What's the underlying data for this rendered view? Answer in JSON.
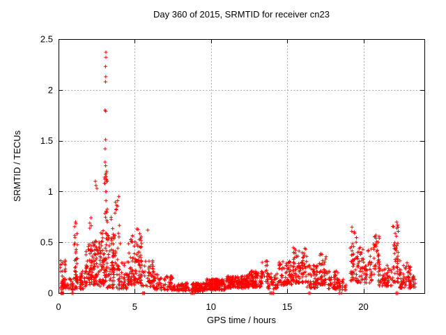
{
  "window": {
    "background": "#ffffff",
    "text_color": "#000000"
  },
  "chart_data": {
    "type": "scatter",
    "title": "Day 360 of 2015, SRMTID for receiver cn23",
    "xlabel": "GPS time / hours",
    "ylabel": "SRMTID / TECUs",
    "xlim": [
      0,
      24
    ],
    "ylim": [
      0,
      2.5
    ],
    "xticks": [
      0,
      5,
      10,
      15,
      20
    ],
    "yticks": [
      0,
      0.5,
      1,
      1.5,
      2,
      2.5
    ],
    "grid": true,
    "legend_position": "none",
    "marker": {
      "shape": "plus",
      "color": "#ff0000",
      "size": 5.2
    },
    "axis_color": "#000000",
    "grid_color": "#a8a8a8",
    "series_name": "SRMTID",
    "outlier_points": [
      [
        3.11,
        2.37
      ],
      [
        3.11,
        2.32
      ],
      [
        3.08,
        2.23
      ],
      [
        3.1,
        2.13
      ],
      [
        3.08,
        2.08
      ],
      [
        3.05,
        1.8
      ],
      [
        3.1,
        1.79
      ],
      [
        3.09,
        1.51
      ],
      [
        3.06,
        1.42
      ],
      [
        3.08,
        1.17
      ],
      [
        3.02,
        1.14
      ],
      [
        3.16,
        1.1
      ],
      [
        2.42,
        1.1
      ],
      [
        2.46,
        1.06
      ],
      [
        2.52,
        1.03
      ],
      [
        3.95,
        0.95
      ],
      [
        3.88,
        0.91
      ],
      [
        1.12,
        0.7
      ],
      [
        5.85,
        0.62
      ],
      [
        19.25,
        0.65
      ],
      [
        22.18,
        0.7
      ],
      [
        22.23,
        0.67
      ],
      [
        20.82,
        0.57
      ]
    ],
    "zero_value_times": [
      0.18,
      0.22,
      0.88,
      0.95,
      5.52,
      5.58,
      5.64,
      8.68,
      8.75,
      8.82,
      8.9,
      13.88,
      13.95,
      14.02,
      14.1,
      16.42,
      16.5,
      18.42,
      18.55,
      22.15,
      22.25
    ],
    "zero_square_x": 0.24,
    "density_bands": [
      {
        "x0": 0.12,
        "x1": 0.45,
        "ymin": 0.05,
        "ymax": 0.35,
        "n": 28,
        "skew": 1.6
      },
      {
        "x0": 0.2,
        "x1": 1.0,
        "ymin": 0.03,
        "ymax": 0.17,
        "n": 45,
        "skew": 1.4
      },
      {
        "x0": 1.0,
        "x1": 1.25,
        "ymin": 0.12,
        "ymax": 0.7,
        "n": 28,
        "skew": 1.7
      },
      {
        "x0": 1.05,
        "x1": 1.85,
        "ymin": 0.04,
        "ymax": 0.22,
        "n": 55,
        "skew": 1.4
      },
      {
        "x0": 1.8,
        "x1": 2.35,
        "ymin": 0.08,
        "ymax": 0.5,
        "n": 65,
        "skew": 1.8
      },
      {
        "x0": 2.05,
        "x1": 2.3,
        "ymin": 0.3,
        "ymax": 0.85,
        "n": 14,
        "skew": 1.3
      },
      {
        "x0": 2.3,
        "x1": 2.75,
        "ymin": 0.08,
        "ymax": 0.52,
        "n": 50,
        "skew": 1.7
      },
      {
        "x0": 2.7,
        "x1": 3.0,
        "ymin": 0.06,
        "ymax": 0.62,
        "n": 45,
        "skew": 1.6
      },
      {
        "x0": 2.98,
        "x1": 3.22,
        "ymin": 0.1,
        "ymax": 1.3,
        "n": 48,
        "skew": 1.5
      },
      {
        "x0": 3.2,
        "x1": 3.65,
        "ymin": 0.05,
        "ymax": 0.6,
        "n": 55,
        "skew": 1.8
      },
      {
        "x0": 3.45,
        "x1": 3.65,
        "ymin": 0.2,
        "ymax": 0.75,
        "n": 15,
        "skew": 1.3
      },
      {
        "x0": 3.7,
        "x1": 4.05,
        "ymin": 0.2,
        "ymax": 0.93,
        "n": 22,
        "skew": 1.4
      },
      {
        "x0": 3.8,
        "x1": 4.55,
        "ymin": 0.04,
        "ymax": 0.3,
        "n": 50,
        "skew": 1.5
      },
      {
        "x0": 4.5,
        "x1": 5.0,
        "ymin": 0.08,
        "ymax": 0.58,
        "n": 50,
        "skew": 1.6
      },
      {
        "x0": 4.95,
        "x1": 5.45,
        "ymin": 0.1,
        "ymax": 0.64,
        "n": 60,
        "skew": 1.5
      },
      {
        "x0": 5.4,
        "x1": 6.25,
        "ymin": 0.06,
        "ymax": 0.32,
        "n": 55,
        "skew": 1.6
      },
      {
        "x0": 6.2,
        "x1": 7.6,
        "ymin": 0.03,
        "ymax": 0.19,
        "n": 85,
        "skew": 1.4
      },
      {
        "x0": 7.6,
        "x1": 8.6,
        "ymin": 0.02,
        "ymax": 0.1,
        "n": 60,
        "skew": 1.2
      },
      {
        "x0": 8.75,
        "x1": 9.6,
        "ymin": 0.015,
        "ymax": 0.1,
        "n": 100,
        "skew": 1.2
      },
      {
        "x0": 9.6,
        "x1": 11.0,
        "ymin": 0.03,
        "ymax": 0.14,
        "n": 170,
        "skew": 1.3
      },
      {
        "x0": 11.0,
        "x1": 12.5,
        "ymin": 0.05,
        "ymax": 0.17,
        "n": 170,
        "skew": 1.3
      },
      {
        "x0": 12.5,
        "x1": 13.35,
        "ymin": 0.06,
        "ymax": 0.22,
        "n": 90,
        "skew": 1.4
      },
      {
        "x0": 13.3,
        "x1": 13.7,
        "ymin": 0.1,
        "ymax": 0.32,
        "n": 25,
        "skew": 1.4
      },
      {
        "x0": 13.7,
        "x1": 14.45,
        "ymin": 0.04,
        "ymax": 0.2,
        "n": 50,
        "skew": 1.4
      },
      {
        "x0": 14.45,
        "x1": 15.4,
        "ymin": 0.08,
        "ymax": 0.32,
        "n": 85,
        "skew": 1.5
      },
      {
        "x0": 15.4,
        "x1": 16.3,
        "ymin": 0.1,
        "ymax": 0.46,
        "n": 85,
        "skew": 1.6
      },
      {
        "x0": 16.3,
        "x1": 17.05,
        "ymin": 0.05,
        "ymax": 0.28,
        "n": 60,
        "skew": 1.5
      },
      {
        "x0": 17.0,
        "x1": 17.6,
        "ymin": 0.08,
        "ymax": 0.43,
        "n": 50,
        "skew": 1.6
      },
      {
        "x0": 17.6,
        "x1": 18.35,
        "ymin": 0.04,
        "ymax": 0.22,
        "n": 50,
        "skew": 1.4
      },
      {
        "x0": 18.3,
        "x1": 18.85,
        "ymin": 0.03,
        "ymax": 0.15,
        "n": 28,
        "skew": 1.3
      },
      {
        "x0": 19.1,
        "x1": 19.55,
        "ymin": 0.12,
        "ymax": 0.63,
        "n": 40,
        "skew": 1.5
      },
      {
        "x0": 19.5,
        "x1": 20.55,
        "ymin": 0.1,
        "ymax": 0.45,
        "n": 80,
        "skew": 1.5
      },
      {
        "x0": 20.6,
        "x1": 21.05,
        "ymin": 0.18,
        "ymax": 0.56,
        "n": 35,
        "skew": 1.3
      },
      {
        "x0": 21.0,
        "x1": 21.9,
        "ymin": 0.07,
        "ymax": 0.3,
        "n": 60,
        "skew": 1.5
      },
      {
        "x0": 21.9,
        "x1": 22.4,
        "ymin": 0.1,
        "ymax": 0.68,
        "n": 50,
        "skew": 1.4
      },
      {
        "x0": 22.4,
        "x1": 23.1,
        "ymin": 0.05,
        "ymax": 0.3,
        "n": 60,
        "skew": 1.5
      },
      {
        "x0": 23.0,
        "x1": 23.45,
        "ymin": 0.05,
        "ymax": 0.19,
        "n": 22,
        "skew": 1.3
      }
    ]
  }
}
